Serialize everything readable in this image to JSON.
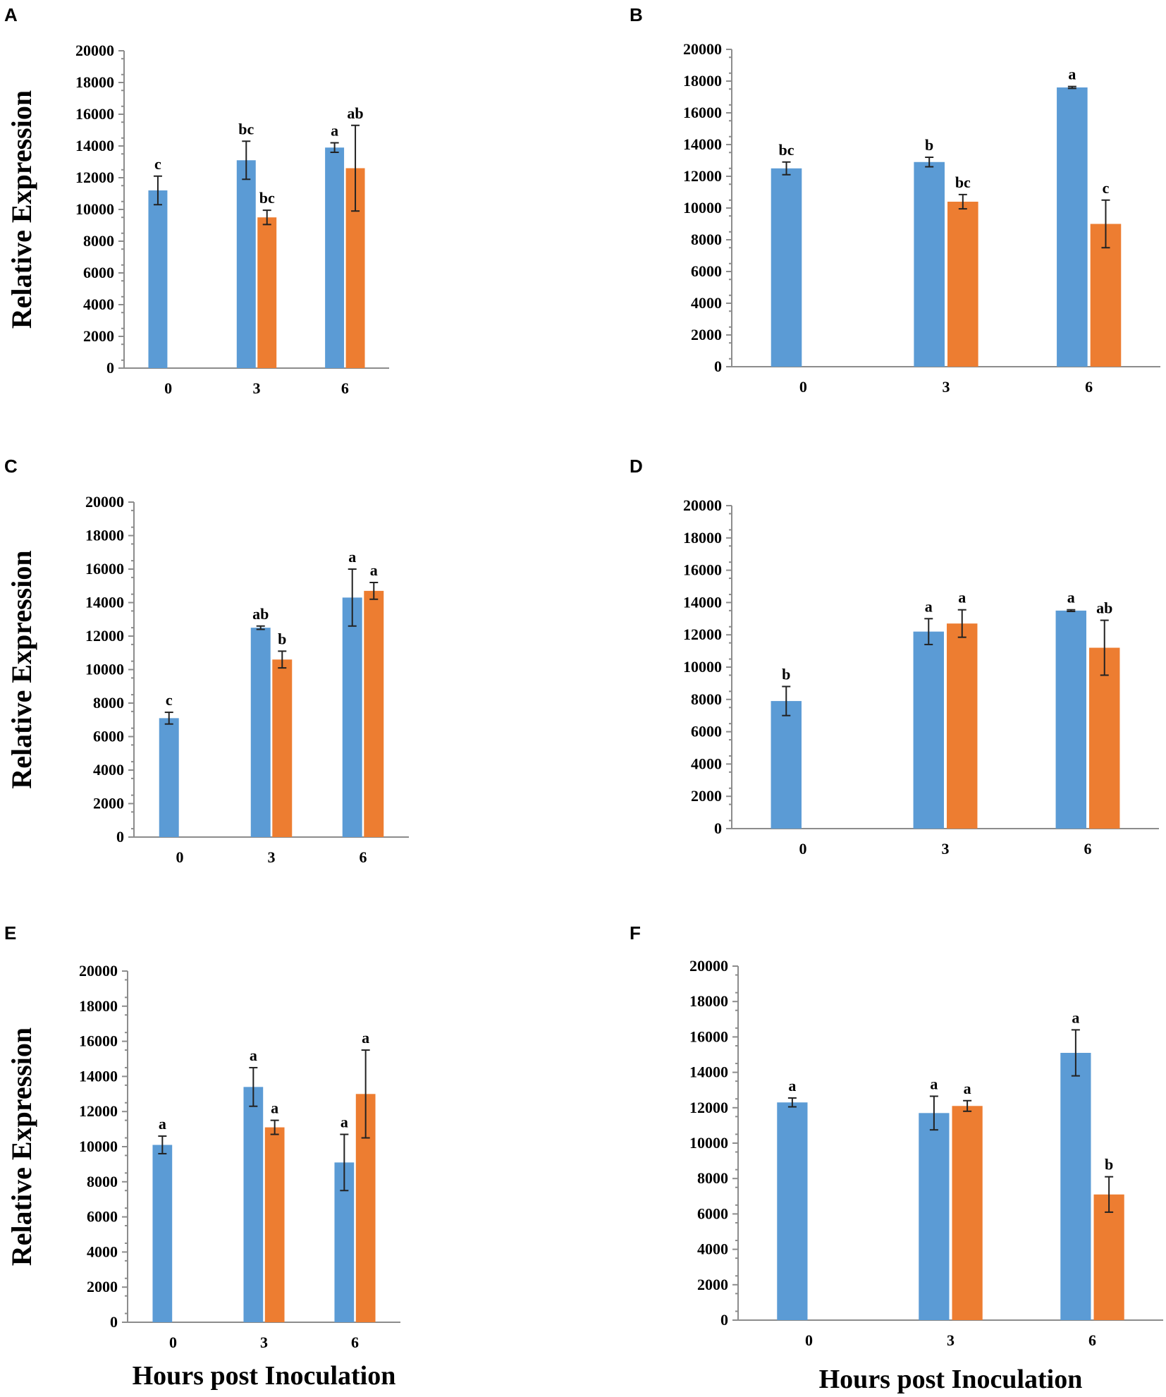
{
  "figure": {
    "panel_letters": [
      "A",
      "B",
      "C",
      "D",
      "E",
      "F"
    ]
  },
  "chart_data": [
    {
      "panel": "A",
      "type": "bar",
      "ylabel": "Relative Expression",
      "xlabel": "",
      "categories": [
        "0",
        "3",
        "6"
      ],
      "ylim": [
        0,
        20000
      ],
      "yticks": [
        "0",
        "2000",
        "4000",
        "6000",
        "8000",
        "10000",
        "12000",
        "14000",
        "16000",
        "18000",
        "20000"
      ],
      "colors": [
        "#5b9bd5",
        "#ed7d31"
      ],
      "series": [
        {
          "name": "blue",
          "values": [
            11200,
            13100,
            13900
          ],
          "errors": [
            900,
            1200,
            300
          ],
          "labels": [
            "c",
            "bc",
            "a"
          ]
        },
        {
          "name": "orange",
          "values": [
            null,
            9500,
            12600
          ],
          "errors": [
            null,
            450,
            2700
          ],
          "labels": [
            "",
            "bc",
            "ab"
          ]
        }
      ]
    },
    {
      "panel": "B",
      "type": "bar",
      "ylabel": "",
      "xlabel": "",
      "categories": [
        "0",
        "3",
        "6"
      ],
      "ylim": [
        0,
        20000
      ],
      "yticks": [
        "0",
        "2000",
        "4000",
        "6000",
        "8000",
        "10000",
        "12000",
        "14000",
        "16000",
        "18000",
        "20000"
      ],
      "colors": [
        "#5b9bd5",
        "#ed7d31"
      ],
      "series": [
        {
          "name": "blue",
          "values": [
            12500,
            12900,
            17600
          ],
          "errors": [
            400,
            300,
            60
          ],
          "labels": [
            "bc",
            "b",
            "a"
          ]
        },
        {
          "name": "orange",
          "values": [
            null,
            10400,
            9000
          ],
          "errors": [
            null,
            450,
            1500
          ],
          "labels": [
            "",
            "bc",
            "c"
          ]
        }
      ]
    },
    {
      "panel": "C",
      "type": "bar",
      "ylabel": "Relative Expression",
      "xlabel": "",
      "categories": [
        "0",
        "3",
        "6"
      ],
      "ylim": [
        0,
        20000
      ],
      "yticks": [
        "0",
        "2000",
        "4000",
        "6000",
        "8000",
        "10000",
        "12000",
        "14000",
        "16000",
        "18000",
        "20000"
      ],
      "colors": [
        "#5b9bd5",
        "#ed7d31"
      ],
      "series": [
        {
          "name": "blue",
          "values": [
            7100,
            12500,
            14300
          ],
          "errors": [
            350,
            100,
            1700
          ],
          "labels": [
            "c",
            "ab",
            "a"
          ]
        },
        {
          "name": "orange",
          "values": [
            null,
            10600,
            14700
          ],
          "errors": [
            null,
            500,
            500
          ],
          "labels": [
            "",
            "b",
            "a"
          ]
        }
      ]
    },
    {
      "panel": "D",
      "type": "bar",
      "ylabel": "",
      "xlabel": "",
      "categories": [
        "0",
        "3",
        "6"
      ],
      "ylim": [
        0,
        20000
      ],
      "yticks": [
        "0",
        "2000",
        "4000",
        "6000",
        "8000",
        "10000",
        "12000",
        "14000",
        "16000",
        "18000",
        "20000"
      ],
      "colors": [
        "#5b9bd5",
        "#ed7d31"
      ],
      "series": [
        {
          "name": "blue",
          "values": [
            7900,
            12200,
            13500
          ],
          "errors": [
            900,
            800,
            50
          ],
          "labels": [
            "b",
            "a",
            "a"
          ]
        },
        {
          "name": "orange",
          "values": [
            null,
            12700,
            11200
          ],
          "errors": [
            null,
            850,
            1700
          ],
          "labels": [
            "",
            "a",
            "ab"
          ]
        }
      ]
    },
    {
      "panel": "E",
      "type": "bar",
      "ylabel": "Relative Expression",
      "xlabel": "Hours post Inoculation",
      "categories": [
        "0",
        "3",
        "6"
      ],
      "ylim": [
        0,
        20000
      ],
      "yticks": [
        "0",
        "2000",
        "4000",
        "6000",
        "8000",
        "10000",
        "12000",
        "14000",
        "16000",
        "18000",
        "20000"
      ],
      "colors": [
        "#5b9bd5",
        "#ed7d31"
      ],
      "series": [
        {
          "name": "blue",
          "values": [
            10100,
            13400,
            9100
          ],
          "errors": [
            500,
            1100,
            1600
          ],
          "labels": [
            "a",
            "a",
            "a"
          ]
        },
        {
          "name": "orange",
          "values": [
            null,
            11100,
            13000
          ],
          "errors": [
            null,
            400,
            2500
          ],
          "labels": [
            "",
            "a",
            "a"
          ]
        }
      ]
    },
    {
      "panel": "F",
      "type": "bar",
      "ylabel": "",
      "xlabel": "Hours post Inoculation",
      "categories": [
        "0",
        "3",
        "6"
      ],
      "ylim": [
        0,
        20000
      ],
      "yticks": [
        "0",
        "2000",
        "4000",
        "6000",
        "8000",
        "10000",
        "12000",
        "14000",
        "16000",
        "18000",
        "20000"
      ],
      "colors": [
        "#5b9bd5",
        "#ed7d31"
      ],
      "series": [
        {
          "name": "blue",
          "values": [
            12300,
            11700,
            15100
          ],
          "errors": [
            250,
            950,
            1300
          ],
          "labels": [
            "a",
            "a",
            "a"
          ]
        },
        {
          "name": "orange",
          "values": [
            null,
            12100,
            7100
          ],
          "errors": [
            null,
            300,
            1000
          ],
          "labels": [
            "",
            "a",
            "b"
          ]
        }
      ]
    }
  ]
}
